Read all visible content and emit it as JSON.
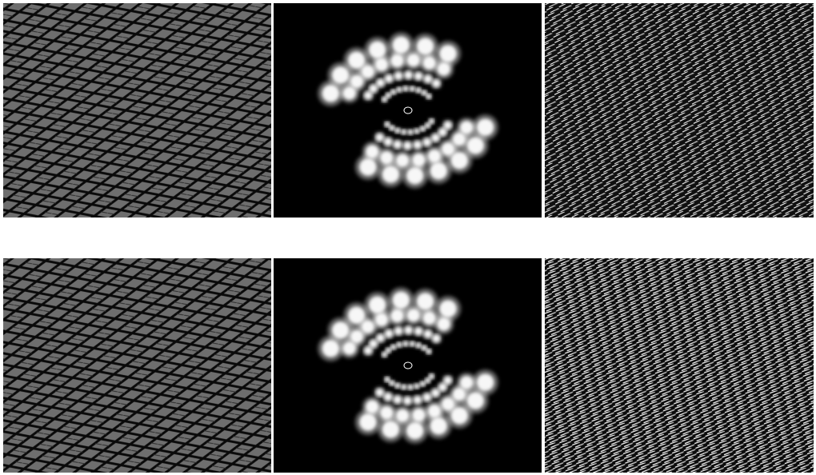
{
  "figure": {
    "rows": [
      {
        "panels": [
          {
            "kind": "lattice",
            "description_key": "row1-original"
          },
          {
            "kind": "spectrum",
            "description_key": "row1-spectrum"
          },
          {
            "kind": "residual",
            "description_key": "row1-residual"
          }
        ]
      },
      {
        "panels": [
          {
            "kind": "lattice",
            "description_key": "row2-original"
          },
          {
            "kind": "spectrum",
            "description_key": "row2-spectrum"
          },
          {
            "kind": "residual",
            "description_key": "row2-residual"
          }
        ]
      }
    ]
  },
  "colors": {
    "background": "#ffffff",
    "lattice_fill": "#6e6e6e",
    "lattice_line": "#0a0a0a",
    "spectrum_bg": "#000000",
    "spectrum_spot": "#ffffff",
    "residual_bg": "#000000",
    "residual_line": "#ffffff"
  }
}
